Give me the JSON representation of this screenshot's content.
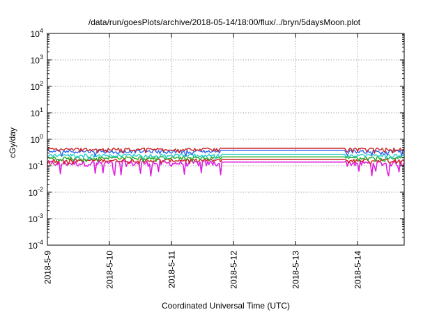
{
  "chart_data": {
    "type": "line",
    "title": "/data/run/goesPlots/archive/2018-05-14/18:00/flux/../bryn/5daysMoon.plot",
    "xlabel": "Coordinated Universal Time (UTC)",
    "ylabel": "cGy/day",
    "yscale": "log",
    "ylim": [
      0.0001,
      10000
    ],
    "xlim": [
      "2018-05-09",
      "2018-05-14 18:00"
    ],
    "grid": true,
    "y_ticks": [
      {
        "mant": "10",
        "exp": "4"
      },
      {
        "mant": "10",
        "exp": "3"
      },
      {
        "mant": "10",
        "exp": "2"
      },
      {
        "mant": "10",
        "exp": "1"
      },
      {
        "mant": "10",
        "exp": "0"
      },
      {
        "mant": "10",
        "exp": "-1"
      },
      {
        "mant": "10",
        "exp": "-2"
      },
      {
        "mant": "10",
        "exp": "-3"
      },
      {
        "mant": "10",
        "exp": "-4"
      }
    ],
    "x_ticks": [
      "2018-5-9",
      "2018-5-10",
      "2018-5-11",
      "2018-5-12",
      "2018-5-13",
      "2018-5-14"
    ],
    "flat_segment": [
      "2018-05-11 19:00",
      "2018-05-13 19:00"
    ],
    "series": [
      {
        "color": "#dd22dd",
        "base": 0.125,
        "noise": 0.5
      },
      {
        "color": "#cc2222",
        "base": 0.16,
        "noise": 0.28
      },
      {
        "color": "#22aa22",
        "base": 0.2,
        "noise": 0.25
      },
      {
        "color": "#22cccc",
        "base": 0.25,
        "noise": 0.25
      },
      {
        "color": "#3366ee",
        "base": 0.35,
        "noise": 0.3
      },
      {
        "color": "#cc2222",
        "base": 0.42,
        "noise": 0.25
      }
    ]
  }
}
